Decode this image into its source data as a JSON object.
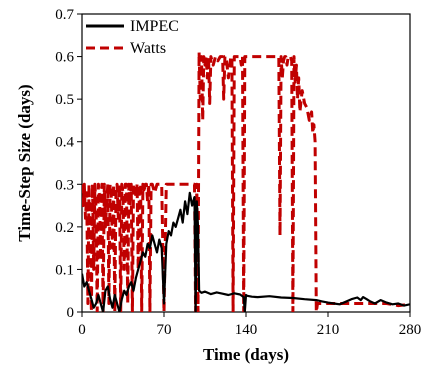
{
  "chart_data": {
    "type": "line",
    "xlabel": "Time (days)",
    "ylabel": "Time-Step Size (days)",
    "xlim": [
      0,
      280
    ],
    "ylim": [
      0,
      0.7
    ],
    "xticks": [
      0,
      70,
      140,
      210,
      280
    ],
    "yticks": [
      0,
      0.1,
      0.2,
      0.3,
      0.4,
      0.5,
      0.6,
      0.7
    ],
    "xtick_labels": [
      "0",
      "70",
      "140",
      "210",
      "280"
    ],
    "ytick_labels": [
      "0",
      "0.1",
      "0.2",
      "0.3",
      "0.4",
      "0.5",
      "0.6",
      "0.7"
    ],
    "grid": false,
    "legend_position": "top-left",
    "series": [
      {
        "name": "IMPEC",
        "color": "#000000",
        "style": "solid",
        "x": [
          0,
          2,
          4,
          6,
          8,
          10,
          12,
          14,
          16,
          18,
          20,
          22,
          24,
          26,
          28,
          30,
          32,
          34,
          36,
          38,
          40,
          42,
          44,
          46,
          48,
          50,
          52,
          54,
          56,
          58,
          60,
          62,
          64,
          66,
          68,
          70,
          72,
          74,
          76,
          78,
          80,
          82,
          84,
          86,
          88,
          90,
          92,
          94,
          96,
          97,
          98,
          99,
          100,
          102,
          105,
          110,
          115,
          120,
          125,
          130,
          135,
          138,
          139,
          140,
          141,
          145,
          150,
          160,
          170,
          180,
          190,
          200,
          205,
          210,
          215,
          220,
          225,
          230,
          235,
          238,
          240,
          243,
          246,
          250,
          255,
          260,
          265,
          270,
          275,
          280
        ],
        "y": [
          0.09,
          0.06,
          0.07,
          0.05,
          0.03,
          0.01,
          0.02,
          0.04,
          0.02,
          0.0,
          0.05,
          0.06,
          0.03,
          0.01,
          0.04,
          0.02,
          0.0,
          0.03,
          0.05,
          0.04,
          0.06,
          0.07,
          0.05,
          0.08,
          0.1,
          0.12,
          0.14,
          0.13,
          0.16,
          0.15,
          0.18,
          0.16,
          0.14,
          0.17,
          0.15,
          0.02,
          0.16,
          0.19,
          0.18,
          0.21,
          0.2,
          0.22,
          0.24,
          0.21,
          0.26,
          0.23,
          0.28,
          0.25,
          0.27,
          0.0,
          0.26,
          0.2,
          0.05,
          0.045,
          0.048,
          0.042,
          0.046,
          0.043,
          0.04,
          0.044,
          0.041,
          0.035,
          0.0,
          0.04,
          0.038,
          0.036,
          0.035,
          0.037,
          0.034,
          0.033,
          0.03,
          0.028,
          0.025,
          0.022,
          0.02,
          0.018,
          0.024,
          0.03,
          0.034,
          0.028,
          0.035,
          0.03,
          0.025,
          0.02,
          0.028,
          0.022,
          0.018,
          0.02,
          0.015,
          0.018
        ]
      },
      {
        "name": "Watts",
        "color": "#c00000",
        "style": "dashed",
        "x": [
          0,
          1,
          2,
          3,
          4,
          5,
          6,
          7,
          8,
          9,
          10,
          11,
          12,
          13,
          14,
          15,
          16,
          17,
          18,
          19,
          20,
          22,
          23,
          24,
          25,
          26,
          27,
          28,
          29,
          30,
          31,
          32,
          33,
          34,
          35,
          36,
          37,
          38,
          39,
          40,
          41,
          42,
          43,
          44,
          45,
          46,
          47,
          48,
          49,
          50,
          51,
          52,
          53,
          54,
          55,
          56,
          57,
          58,
          59,
          60,
          62,
          64,
          66,
          68,
          70,
          72,
          80,
          90,
          96,
          97,
          98,
          99,
          100,
          101,
          102,
          103,
          104,
          105,
          106,
          107,
          108,
          109,
          110,
          112,
          114,
          116,
          118,
          120,
          121,
          122,
          123,
          125,
          127,
          128,
          129,
          130,
          132,
          134,
          135,
          136,
          137,
          138,
          139,
          140,
          145,
          150,
          155,
          160,
          165,
          168,
          169,
          170,
          171,
          172,
          173,
          174,
          175,
          176,
          177,
          178,
          179,
          180,
          181,
          182,
          183,
          184,
          185,
          186,
          188,
          190,
          192,
          194,
          196,
          197,
          198,
          199,
          200,
          201,
          202,
          210,
          220,
          230,
          240,
          250,
          260,
          270,
          280
        ],
        "y": [
          0.3,
          0.25,
          0.3,
          0.22,
          0.28,
          0.02,
          0.3,
          0.18,
          0.0,
          0.3,
          0.1,
          0.3,
          0.24,
          0.0,
          0.3,
          0.27,
          0.12,
          0.3,
          0.0,
          0.3,
          0.2,
          0.3,
          0.02,
          0.3,
          0.27,
          0.15,
          0.3,
          0.0,
          0.29,
          0.3,
          0.22,
          0.3,
          0.0,
          0.3,
          0.28,
          0.1,
          0.3,
          0.3,
          0.02,
          0.3,
          0.25,
          0.3,
          0.0,
          0.3,
          0.3,
          0.27,
          0.3,
          0.1,
          0.3,
          0.3,
          0.0,
          0.3,
          0.28,
          0.3,
          0.3,
          0.26,
          0.3,
          0.0,
          0.3,
          0.3,
          0.28,
          0.3,
          0.3,
          0.3,
          0.0,
          0.3,
          0.3,
          0.3,
          0.3,
          0.0,
          0.3,
          0.0,
          0.61,
          0.5,
          0.6,
          0.45,
          0.6,
          0.58,
          0.6,
          0.55,
          0.6,
          0.49,
          0.6,
          0.58,
          0.6,
          0.59,
          0.6,
          0.6,
          0.5,
          0.6,
          0.6,
          0.55,
          0.6,
          0.6,
          0.0,
          0.6,
          0.6,
          0.6,
          0.6,
          0.58,
          0.6,
          0.0,
          0.6,
          0.6,
          0.6,
          0.6,
          0.6,
          0.6,
          0.6,
          0.6,
          0.18,
          0.6,
          0.55,
          0.59,
          0.6,
          0.6,
          0.58,
          0.6,
          0.6,
          0.6,
          0.59,
          0.0,
          0.6,
          0.54,
          0.58,
          0.5,
          0.55,
          0.47,
          0.52,
          0.49,
          0.48,
          0.45,
          0.47,
          0.42,
          0.44,
          0.4,
          0.0,
          0.02,
          0.02,
          0.02,
          0.02,
          0.02,
          0.02,
          0.02,
          0.02,
          0.015,
          0.018
        ]
      }
    ]
  }
}
